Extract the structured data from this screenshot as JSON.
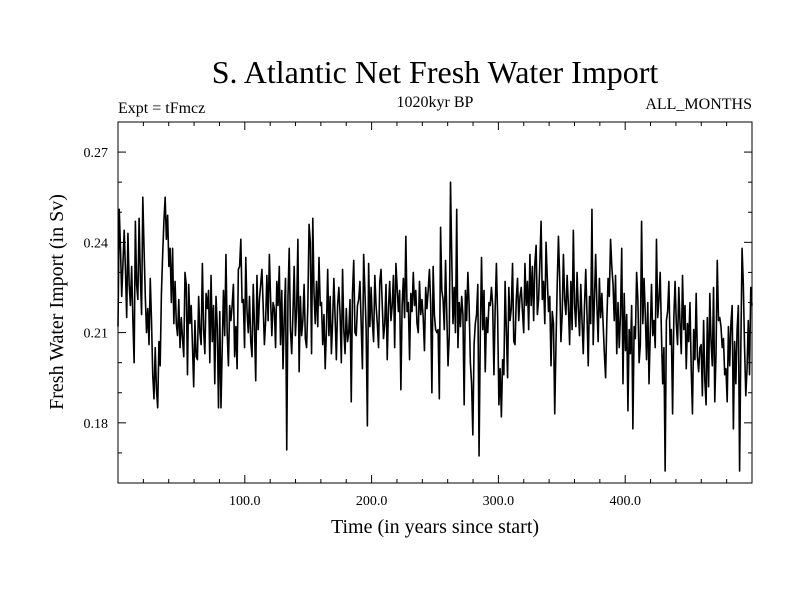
{
  "chart_data": {
    "type": "line",
    "title": "S. Atlantic Net Fresh Water Import",
    "subtitle": "1020kyr BP",
    "annotation_left": "Expt = tFmcz",
    "annotation_right": "ALL_MONTHS",
    "xlabel": "Time (in years since start)",
    "ylabel": "Fresh Water Import (in Sv)",
    "xlim": [
      0,
      500
    ],
    "ylim": [
      0.16,
      0.28
    ],
    "x_ticks": [
      100,
      200,
      300,
      400
    ],
    "x_tick_labels": [
      "100.0",
      "200.0",
      "300.0",
      "400.0"
    ],
    "y_ticks": [
      0.18,
      0.21,
      0.24,
      0.27
    ],
    "y_tick_labels": [
      "0.18",
      "0.21",
      "0.24",
      "0.27"
    ],
    "grid": false,
    "series": [
      {
        "name": "Fresh Water Import",
        "color": "#000000",
        "values": [
          0.212,
          0.251,
          0.238,
          0.222,
          0.233,
          0.244,
          0.231,
          0.215,
          0.243,
          0.226,
          0.219,
          0.232,
          0.214,
          0.2,
          0.247,
          0.226,
          0.221,
          0.248,
          0.229,
          0.216,
          0.255,
          0.238,
          0.222,
          0.21,
          0.218,
          0.206,
          0.228,
          0.214,
          0.196,
          0.188,
          0.205,
          0.191,
          0.185,
          0.207,
          0.199,
          0.223,
          0.236,
          0.247,
          0.255,
          0.241,
          0.249,
          0.232,
          0.238,
          0.22,
          0.238,
          0.213,
          0.227,
          0.213,
          0.209,
          0.221,
          0.205,
          0.215,
          0.208,
          0.202,
          0.23,
          0.226,
          0.196,
          0.226,
          0.213,
          0.219,
          0.206,
          0.192,
          0.214,
          0.202,
          0.201,
          0.222,
          0.21,
          0.206,
          0.233,
          0.211,
          0.203,
          0.223,
          0.218,
          0.224,
          0.2,
          0.229,
          0.207,
          0.219,
          0.193,
          0.222,
          0.212,
          0.185,
          0.217,
          0.185,
          0.205,
          0.224,
          0.209,
          0.236,
          0.21,
          0.199,
          0.219,
          0.214,
          0.219,
          0.226,
          0.202,
          0.212,
          0.198,
          0.231,
          0.232,
          0.241,
          0.22,
          0.221,
          0.205,
          0.235,
          0.217,
          0.21,
          0.222,
          0.207,
          0.202,
          0.226,
          0.212,
          0.194,
          0.229,
          0.211,
          0.221,
          0.226,
          0.231,
          0.219,
          0.206,
          0.214,
          0.229,
          0.214,
          0.236,
          0.221,
          0.209,
          0.22,
          0.218,
          0.205,
          0.227,
          0.219,
          0.232,
          0.206,
          0.224,
          0.198,
          0.215,
          0.228,
          0.171,
          0.222,
          0.238,
          0.211,
          0.203,
          0.216,
          0.232,
          0.209,
          0.218,
          0.241,
          0.197,
          0.222,
          0.209,
          0.214,
          0.226,
          0.208,
          0.205,
          0.219,
          0.246,
          0.24,
          0.203,
          0.248,
          0.223,
          0.213,
          0.227,
          0.212,
          0.235,
          0.219,
          0.22,
          0.206,
          0.216,
          0.198,
          0.211,
          0.231,
          0.209,
          0.222,
          0.203,
          0.214,
          0.228,
          0.215,
          0.201,
          0.219,
          0.225,
          0.216,
          0.2,
          0.231,
          0.211,
          0.203,
          0.218,
          0.207,
          0.21,
          0.221,
          0.187,
          0.223,
          0.234,
          0.21,
          0.209,
          0.219,
          0.221,
          0.227,
          0.213,
          0.198,
          0.236,
          0.224,
          0.211,
          0.179,
          0.233,
          0.212,
          0.225,
          0.214,
          0.207,
          0.229,
          0.219,
          0.213,
          0.205,
          0.227,
          0.231,
          0.219,
          0.208,
          0.213,
          0.226,
          0.201,
          0.218,
          0.227,
          0.214,
          0.219,
          0.229,
          0.205,
          0.233,
          0.225,
          0.217,
          0.224,
          0.191,
          0.219,
          0.228,
          0.215,
          0.242,
          0.217,
          0.22,
          0.201,
          0.223,
          0.217,
          0.23,
          0.219,
          0.224,
          0.213,
          0.21,
          0.227,
          0.216,
          0.221,
          0.215,
          0.204,
          0.225,
          0.218,
          0.224,
          0.231,
          0.22,
          0.19,
          0.232,
          0.216,
          0.211,
          0.21,
          0.211,
          0.188,
          0.245,
          0.224,
          0.221,
          0.211,
          0.234,
          0.216,
          0.199,
          0.209,
          0.26,
          0.235,
          0.213,
          0.225,
          0.21,
          0.251,
          0.205,
          0.22,
          0.212,
          0.222,
          0.216,
          0.186,
          0.224,
          0.214,
          0.23,
          0.219,
          0.2,
          0.193,
          0.176,
          0.206,
          0.213,
          0.216,
          0.226,
          0.169,
          0.209,
          0.235,
          0.211,
          0.224,
          0.197,
          0.215,
          0.21,
          0.22,
          0.219,
          0.225,
          0.219,
          0.196,
          0.218,
          0.233,
          0.215,
          0.186,
          0.198,
          0.182,
          0.201,
          0.196,
          0.227,
          0.211,
          0.195,
          0.225,
          0.214,
          0.218,
          0.233,
          0.207,
          0.206,
          0.221,
          0.228,
          0.214,
          0.222,
          0.225,
          0.217,
          0.21,
          0.233,
          0.219,
          0.227,
          0.211,
          0.236,
          0.219,
          0.232,
          0.214,
          0.233,
          0.239,
          0.216,
          0.221,
          0.233,
          0.247,
          0.221,
          0.227,
          0.213,
          0.24,
          0.228,
          0.217,
          0.222,
          0.199,
          0.217,
          0.213,
          0.183,
          0.206,
          0.226,
          0.242,
          0.228,
          0.207,
          0.216,
          0.236,
          0.221,
          0.216,
          0.229,
          0.219,
          0.206,
          0.227,
          0.211,
          0.244,
          0.219,
          0.212,
          0.23,
          0.218,
          0.209,
          0.226,
          0.214,
          0.203,
          0.219,
          0.231,
          0.216,
          0.199,
          0.222,
          0.213,
          0.251,
          0.206,
          0.221,
          0.236,
          0.219,
          0.207,
          0.228,
          0.215,
          0.223,
          0.213,
          0.203,
          0.195,
          0.214,
          0.228,
          0.222,
          0.241,
          0.232,
          0.226,
          0.214,
          0.229,
          0.203,
          0.22,
          0.205,
          0.216,
          0.238,
          0.193,
          0.223,
          0.204,
          0.216,
          0.184,
          0.211,
          0.203,
          0.219,
          0.178,
          0.212,
          0.208,
          0.23,
          0.221,
          0.2,
          0.206,
          0.247,
          0.213,
          0.228,
          0.216,
          0.201,
          0.22,
          0.193,
          0.21,
          0.226,
          0.209,
          0.214,
          0.205,
          0.241,
          0.215,
          0.221,
          0.23,
          0.21,
          0.193,
          0.205,
          0.164,
          0.214,
          0.217,
          0.227,
          0.206,
          0.211,
          0.183,
          0.215,
          0.227,
          0.213,
          0.206,
          0.225,
          0.213,
          0.203,
          0.229,
          0.211,
          0.219,
          0.198,
          0.213,
          0.207,
          0.22,
          0.198,
          0.183,
          0.211,
          0.201,
          0.223,
          0.202,
          0.197,
          0.205,
          0.206,
          0.189,
          0.214,
          0.194,
          0.186,
          0.215,
          0.192,
          0.223,
          0.207,
          0.199,
          0.225,
          0.187,
          0.203,
          0.234,
          0.214,
          0.215,
          0.212,
          0.205,
          0.208,
          0.196,
          0.198,
          0.187,
          0.212,
          0.199,
          0.213,
          0.219,
          0.178,
          0.207,
          0.193,
          0.211,
          0.219,
          0.164,
          0.205,
          0.238,
          0.226,
          0.205,
          0.189,
          0.198,
          0.214,
          0.196,
          0.225,
          0.219
        ]
      }
    ]
  }
}
